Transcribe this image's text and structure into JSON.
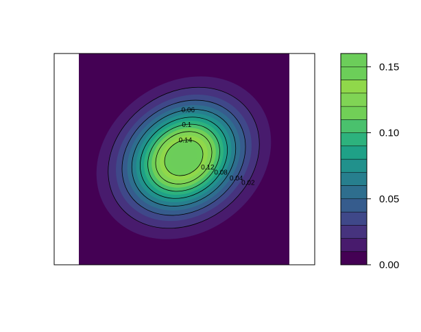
{
  "chart_data": {
    "type": "filled-contour",
    "title": "",
    "xlabel": "",
    "ylabel": "",
    "palette": "viridis",
    "levels": [
      0.0,
      0.01,
      0.02,
      0.03,
      0.04,
      0.05,
      0.06,
      0.07,
      0.08,
      0.09,
      0.1,
      0.11,
      0.12,
      0.13,
      0.14,
      0.15,
      0.16
    ],
    "level_colors": [
      "#440154",
      "#481b6d",
      "#46337e",
      "#3f4889",
      "#365c8d",
      "#2e6e8e",
      "#277f8e",
      "#21918c",
      "#1fa187",
      "#2db27d",
      "#4ac16d",
      "#71cf57",
      "#80d455",
      "#90d84a",
      "#6cce59",
      "#6ccd5a"
    ],
    "peak_value": 0.16,
    "distribution": "bivariate normal, positive correlation",
    "contour_lines": [
      0.02,
      0.04,
      0.06,
      0.08,
      0.1,
      0.12,
      0.14
    ],
    "contour_labels": [
      {
        "value": "0.02",
        "text": "0.02"
      },
      {
        "value": "0.04",
        "text": "0.04"
      },
      {
        "value": "0.06",
        "text": "0.06"
      },
      {
        "value": "0.08",
        "text": "0.08"
      },
      {
        "value": "0.1",
        "text": "0.1"
      },
      {
        "value": "0.12",
        "text": "0.12"
      },
      {
        "value": "0.14",
        "text": "0.14"
      }
    ],
    "colorbar": {
      "ticks": [
        {
          "value": 0.0,
          "label": "0.00"
        },
        {
          "value": 0.05,
          "label": "0.05"
        },
        {
          "value": 0.1,
          "label": "0.10"
        },
        {
          "value": 0.15,
          "label": "0.15"
        }
      ],
      "range": [
        0.0,
        0.16
      ]
    }
  }
}
